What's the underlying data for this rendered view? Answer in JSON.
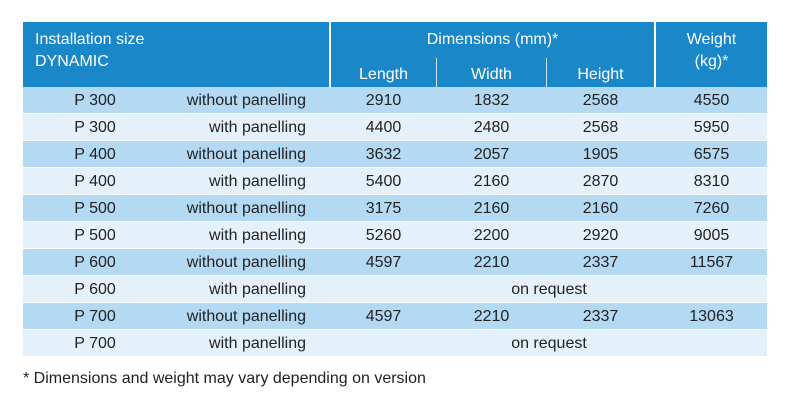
{
  "header": {
    "installation": [
      "Installation size",
      "DYNAMIC"
    ],
    "dimensions": "Dimensions (mm)*",
    "length": "Length",
    "width": "Width",
    "height": "Height",
    "weight": [
      "Weight",
      "(kg)*"
    ]
  },
  "rows": [
    [
      "P 300",
      "without panelling",
      2910,
      1832,
      2568,
      4550
    ],
    [
      "P 300",
      "with panelling",
      4400,
      2480,
      2568,
      5950
    ],
    [
      "P 400",
      "without panelling",
      3632,
      2057,
      1905,
      6575
    ],
    [
      "P 400",
      "with panelling",
      5400,
      2160,
      2870,
      8310
    ],
    [
      "P 500",
      "without panelling",
      3175,
      2160,
      2160,
      7260
    ],
    [
      "P 500",
      "with panelling",
      5260,
      2200,
      2920,
      9005
    ],
    [
      "P 600",
      "without panelling",
      4597,
      2210,
      2337,
      11567
    ],
    [
      "P 600",
      "with panelling",
      "on request"
    ],
    [
      "P 700",
      "without panelling",
      4597,
      2210,
      2337,
      13063
    ],
    [
      "P 700",
      "with panelling",
      "on request"
    ]
  ],
  "footnote": "* Dimensions and weight may vary depending on version"
}
